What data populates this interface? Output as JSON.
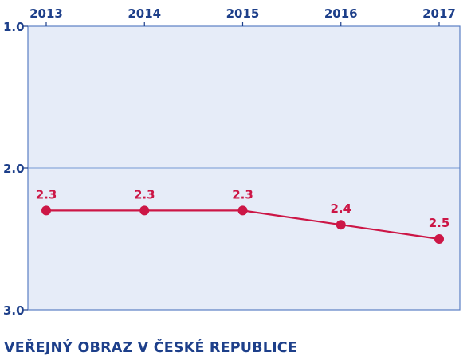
{
  "colors": {
    "axis_text": "#1d3f8a",
    "series": "#cc1646",
    "plot_background": "#e6ecf8",
    "plot_border": "#5b7fc4",
    "gridline": "#9ab4e0"
  },
  "chart_data": {
    "type": "line",
    "title": "VEŘEJNÝ OBRAZ V ČESKÉ REPUBLICE",
    "x": [
      "2013",
      "2014",
      "2015",
      "2016",
      "2017"
    ],
    "series": [
      {
        "values": [
          2.3,
          2.3,
          2.3,
          2.4,
          2.5
        ]
      }
    ],
    "data_labels": [
      "2.3",
      "2.3",
      "2.3",
      "2.4",
      "2.5"
    ],
    "y_ticks": [
      "1.0",
      "2.0",
      "3.0"
    ],
    "ylim": [
      1.0,
      3.0
    ],
    "y_inverted": true,
    "x_axis_position": "top",
    "grid": "horizontal at 2.0",
    "legend": "none"
  }
}
